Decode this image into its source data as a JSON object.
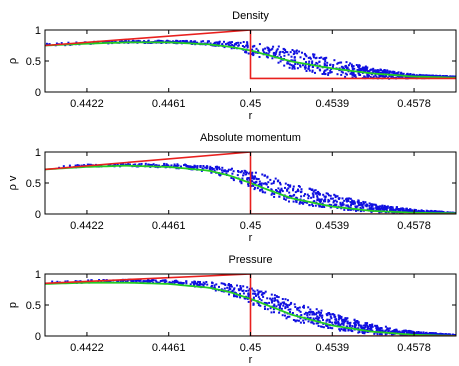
{
  "chart_data": [
    {
      "type": "scatter",
      "title": "Density",
      "xlabel": "r",
      "ylabel": "ρ",
      "xlim": [
        0.4402,
        0.4598
      ],
      "ylim": [
        0,
        1
      ],
      "x_ticks": [
        "0.4422",
        "0.4461",
        "0.45",
        "0.4539",
        "0.4578"
      ],
      "x_tick_values": [
        0.4422,
        0.4461,
        0.45,
        0.4539,
        0.4578
      ],
      "y_ticks": [
        "0",
        "0.5",
        "1"
      ],
      "y_tick_values": [
        0,
        0.5,
        1
      ],
      "grid": false,
      "series": [
        {
          "role": "initial-condition",
          "color": "#e8201e",
          "mark": "line",
          "x": [
            0.4402,
            0.45,
            0.45,
            0.4598
          ],
          "y": [
            0.75,
            1.0,
            0.22,
            0.22
          ]
        },
        {
          "role": "particles",
          "color": "#1010e0",
          "mark": "scatter",
          "x": [
            0.4402,
            0.4422,
            0.4441,
            0.4461,
            0.448,
            0.449,
            0.45,
            0.451,
            0.452,
            0.4539,
            0.4558,
            0.4578,
            0.4598
          ],
          "y": [
            0.76,
            0.79,
            0.81,
            0.81,
            0.79,
            0.76,
            0.71,
            0.63,
            0.53,
            0.4,
            0.3,
            0.25,
            0.24
          ],
          "spread": [
            0.02,
            0.02,
            0.02,
            0.02,
            0.03,
            0.05,
            0.1,
            0.14,
            0.16,
            0.14,
            0.09,
            0.03,
            0.01
          ]
        },
        {
          "role": "reference",
          "color": "#22cc22",
          "mark": "line",
          "x": [
            0.4402,
            0.4422,
            0.4441,
            0.4461,
            0.448,
            0.449,
            0.45,
            0.451,
            0.452,
            0.4539,
            0.4558,
            0.4578,
            0.4598
          ],
          "y": [
            0.75,
            0.78,
            0.8,
            0.8,
            0.77,
            0.73,
            0.67,
            0.58,
            0.49,
            0.38,
            0.3,
            0.25,
            0.23
          ]
        }
      ]
    },
    {
      "type": "scatter",
      "title": "Absolute momentum",
      "xlabel": "r",
      "ylabel": "ρ v",
      "xlim": [
        0.4402,
        0.4598
      ],
      "ylim": [
        0,
        1
      ],
      "x_ticks": [
        "0.4422",
        "0.4461",
        "0.45",
        "0.4539",
        "0.4578"
      ],
      "x_tick_values": [
        0.4422,
        0.4461,
        0.45,
        0.4539,
        0.4578
      ],
      "y_ticks": [
        "0",
        "0.5",
        "1"
      ],
      "y_tick_values": [
        0,
        0.5,
        1
      ],
      "grid": false,
      "series": [
        {
          "role": "initial-condition",
          "color": "#e8201e",
          "mark": "line",
          "x": [
            0.4402,
            0.45,
            0.45,
            0.4598
          ],
          "y": [
            0.72,
            1.0,
            0.0,
            0.0
          ]
        },
        {
          "role": "particles",
          "color": "#1010e0",
          "mark": "scatter",
          "x": [
            0.4402,
            0.4422,
            0.4441,
            0.4461,
            0.448,
            0.449,
            0.45,
            0.451,
            0.452,
            0.4539,
            0.4558,
            0.4578,
            0.4598
          ],
          "y": [
            0.74,
            0.78,
            0.79,
            0.78,
            0.73,
            0.66,
            0.56,
            0.44,
            0.33,
            0.2,
            0.1,
            0.04,
            0.01
          ],
          "spread": [
            0.02,
            0.02,
            0.02,
            0.03,
            0.05,
            0.09,
            0.13,
            0.16,
            0.15,
            0.12,
            0.07,
            0.03,
            0.01
          ]
        },
        {
          "role": "reference",
          "color": "#22cc22",
          "mark": "line",
          "x": [
            0.4402,
            0.4422,
            0.4441,
            0.4461,
            0.448,
            0.449,
            0.45,
            0.451,
            0.452,
            0.4539,
            0.4558,
            0.4578,
            0.4598
          ],
          "y": [
            0.72,
            0.76,
            0.78,
            0.76,
            0.7,
            0.62,
            0.5,
            0.37,
            0.25,
            0.12,
            0.05,
            0.02,
            0.01
          ]
        }
      ]
    },
    {
      "type": "scatter",
      "title": "Pressure",
      "xlabel": "r",
      "ylabel": "p",
      "xlim": [
        0.4402,
        0.4598
      ],
      "ylim": [
        0,
        1
      ],
      "x_ticks": [
        "0.4422",
        "0.4461",
        "0.45",
        "0.4539",
        "0.4578"
      ],
      "x_tick_values": [
        0.4422,
        0.4461,
        0.45,
        0.4539,
        0.4578
      ],
      "y_ticks": [
        "0",
        "0.5",
        "1"
      ],
      "y_tick_values": [
        0,
        0.5,
        1
      ],
      "grid": false,
      "series": [
        {
          "role": "initial-condition",
          "color": "#e8201e",
          "mark": "line",
          "x": [
            0.4402,
            0.45,
            0.45,
            0.4598
          ],
          "y": [
            0.85,
            1.0,
            0.0,
            0.0
          ]
        },
        {
          "role": "particles",
          "color": "#1010e0",
          "mark": "scatter",
          "x": [
            0.4402,
            0.4422,
            0.4441,
            0.4461,
            0.448,
            0.449,
            0.45,
            0.451,
            0.452,
            0.4539,
            0.4558,
            0.4578,
            0.4598
          ],
          "y": [
            0.86,
            0.88,
            0.89,
            0.87,
            0.82,
            0.75,
            0.65,
            0.53,
            0.4,
            0.23,
            0.11,
            0.04,
            0.01
          ],
          "spread": [
            0.02,
            0.02,
            0.02,
            0.03,
            0.05,
            0.09,
            0.13,
            0.16,
            0.16,
            0.13,
            0.08,
            0.03,
            0.01
          ]
        },
        {
          "role": "reference",
          "color": "#22cc22",
          "mark": "line",
          "x": [
            0.4402,
            0.4422,
            0.4441,
            0.4461,
            0.448,
            0.449,
            0.45,
            0.451,
            0.452,
            0.4539,
            0.4558,
            0.4578,
            0.4598
          ],
          "y": [
            0.84,
            0.86,
            0.86,
            0.84,
            0.78,
            0.71,
            0.6,
            0.47,
            0.34,
            0.17,
            0.07,
            0.02,
            0.0
          ]
        }
      ]
    }
  ]
}
